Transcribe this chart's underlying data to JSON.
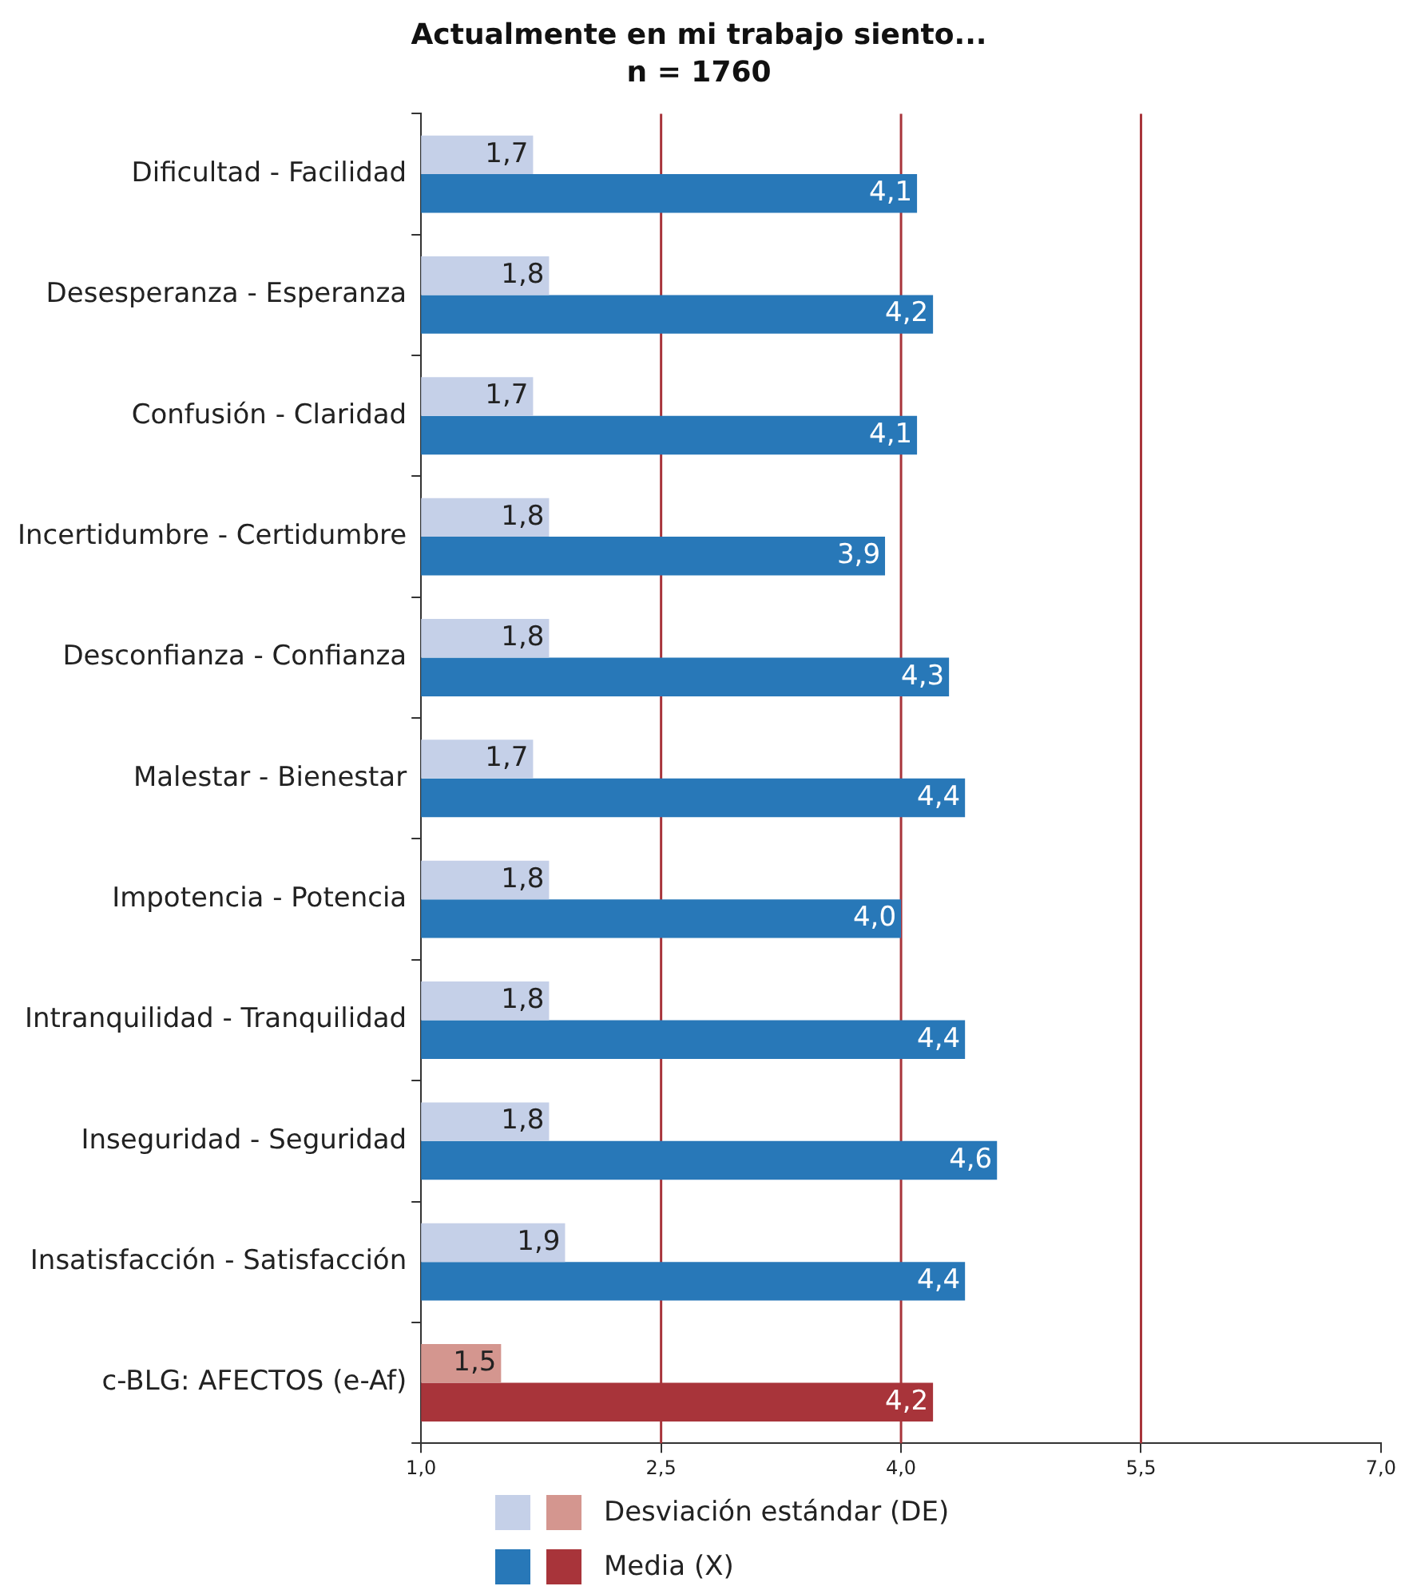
{
  "chart_data": {
    "type": "bar",
    "orientation": "horizontal",
    "title": "Actualmente en mi trabajo siento...",
    "subtitle": "n = 1760",
    "categories": [
      "Dificultad - Facilidad",
      "Desesperanza - Esperanza",
      "Confusión - Claridad",
      "Incertidumbre - Certidumbre",
      "Desconfianza - Confianza",
      "Malestar - Bienestar",
      "Impotencia - Potencia",
      "Intranquilidad - Tranquilidad",
      "Inseguridad - Seguridad",
      "Insatisfacción - Satisfacción",
      "c-BLG: AFECTOS (e-Af)"
    ],
    "series": [
      {
        "name": "Desviación estándar (DE)",
        "color": "#c5d0e8",
        "colors": [
          "#c5d0e8",
          "#c5d0e8",
          "#c5d0e8",
          "#c5d0e8",
          "#c5d0e8",
          "#c5d0e8",
          "#c5d0e8",
          "#c5d0e8",
          "#c5d0e8",
          "#c5d0e8",
          "#d4968f"
        ],
        "values": [
          1.7,
          1.8,
          1.7,
          1.8,
          1.8,
          1.7,
          1.8,
          1.8,
          1.8,
          1.9,
          1.5
        ],
        "value_labels": [
          "1,7",
          "1,8",
          "1,7",
          "1,8",
          "1,8",
          "1,7",
          "1,8",
          "1,8",
          "1,8",
          "1,9",
          "1,5"
        ]
      },
      {
        "name": "Media (X)",
        "color": "#2878b8",
        "colors": [
          "#2878b8",
          "#2878b8",
          "#2878b8",
          "#2878b8",
          "#2878b8",
          "#2878b8",
          "#2878b8",
          "#2878b8",
          "#2878b8",
          "#2878b8",
          "#a8343a"
        ],
        "values": [
          4.1,
          4.2,
          4.1,
          3.9,
          4.3,
          4.4,
          4.0,
          4.4,
          4.6,
          4.4,
          4.2
        ],
        "value_labels": [
          "4,1",
          "4,2",
          "4,1",
          "3,9",
          "4,3",
          "4,4",
          "4,0",
          "4,4",
          "4,6",
          "4,4",
          "4,2"
        ]
      }
    ],
    "xlim": [
      1,
      7
    ],
    "xticks": [
      {
        "value": 1,
        "label": "1,0"
      },
      {
        "value": 2.5,
        "label": "2,5"
      },
      {
        "value": 4,
        "label": "4,0"
      },
      {
        "value": 5.5,
        "label": "5,5"
      },
      {
        "value": 7,
        "label": "7,0"
      }
    ],
    "ref_lines": [
      {
        "axis": "x",
        "value": 2.5,
        "color": "#a8343a"
      },
      {
        "axis": "x",
        "value": 4,
        "color": "#a8343a"
      },
      {
        "axis": "x",
        "value": 5.5,
        "color": "#a8343a"
      }
    ],
    "grid": false,
    "legend": "bottom"
  }
}
